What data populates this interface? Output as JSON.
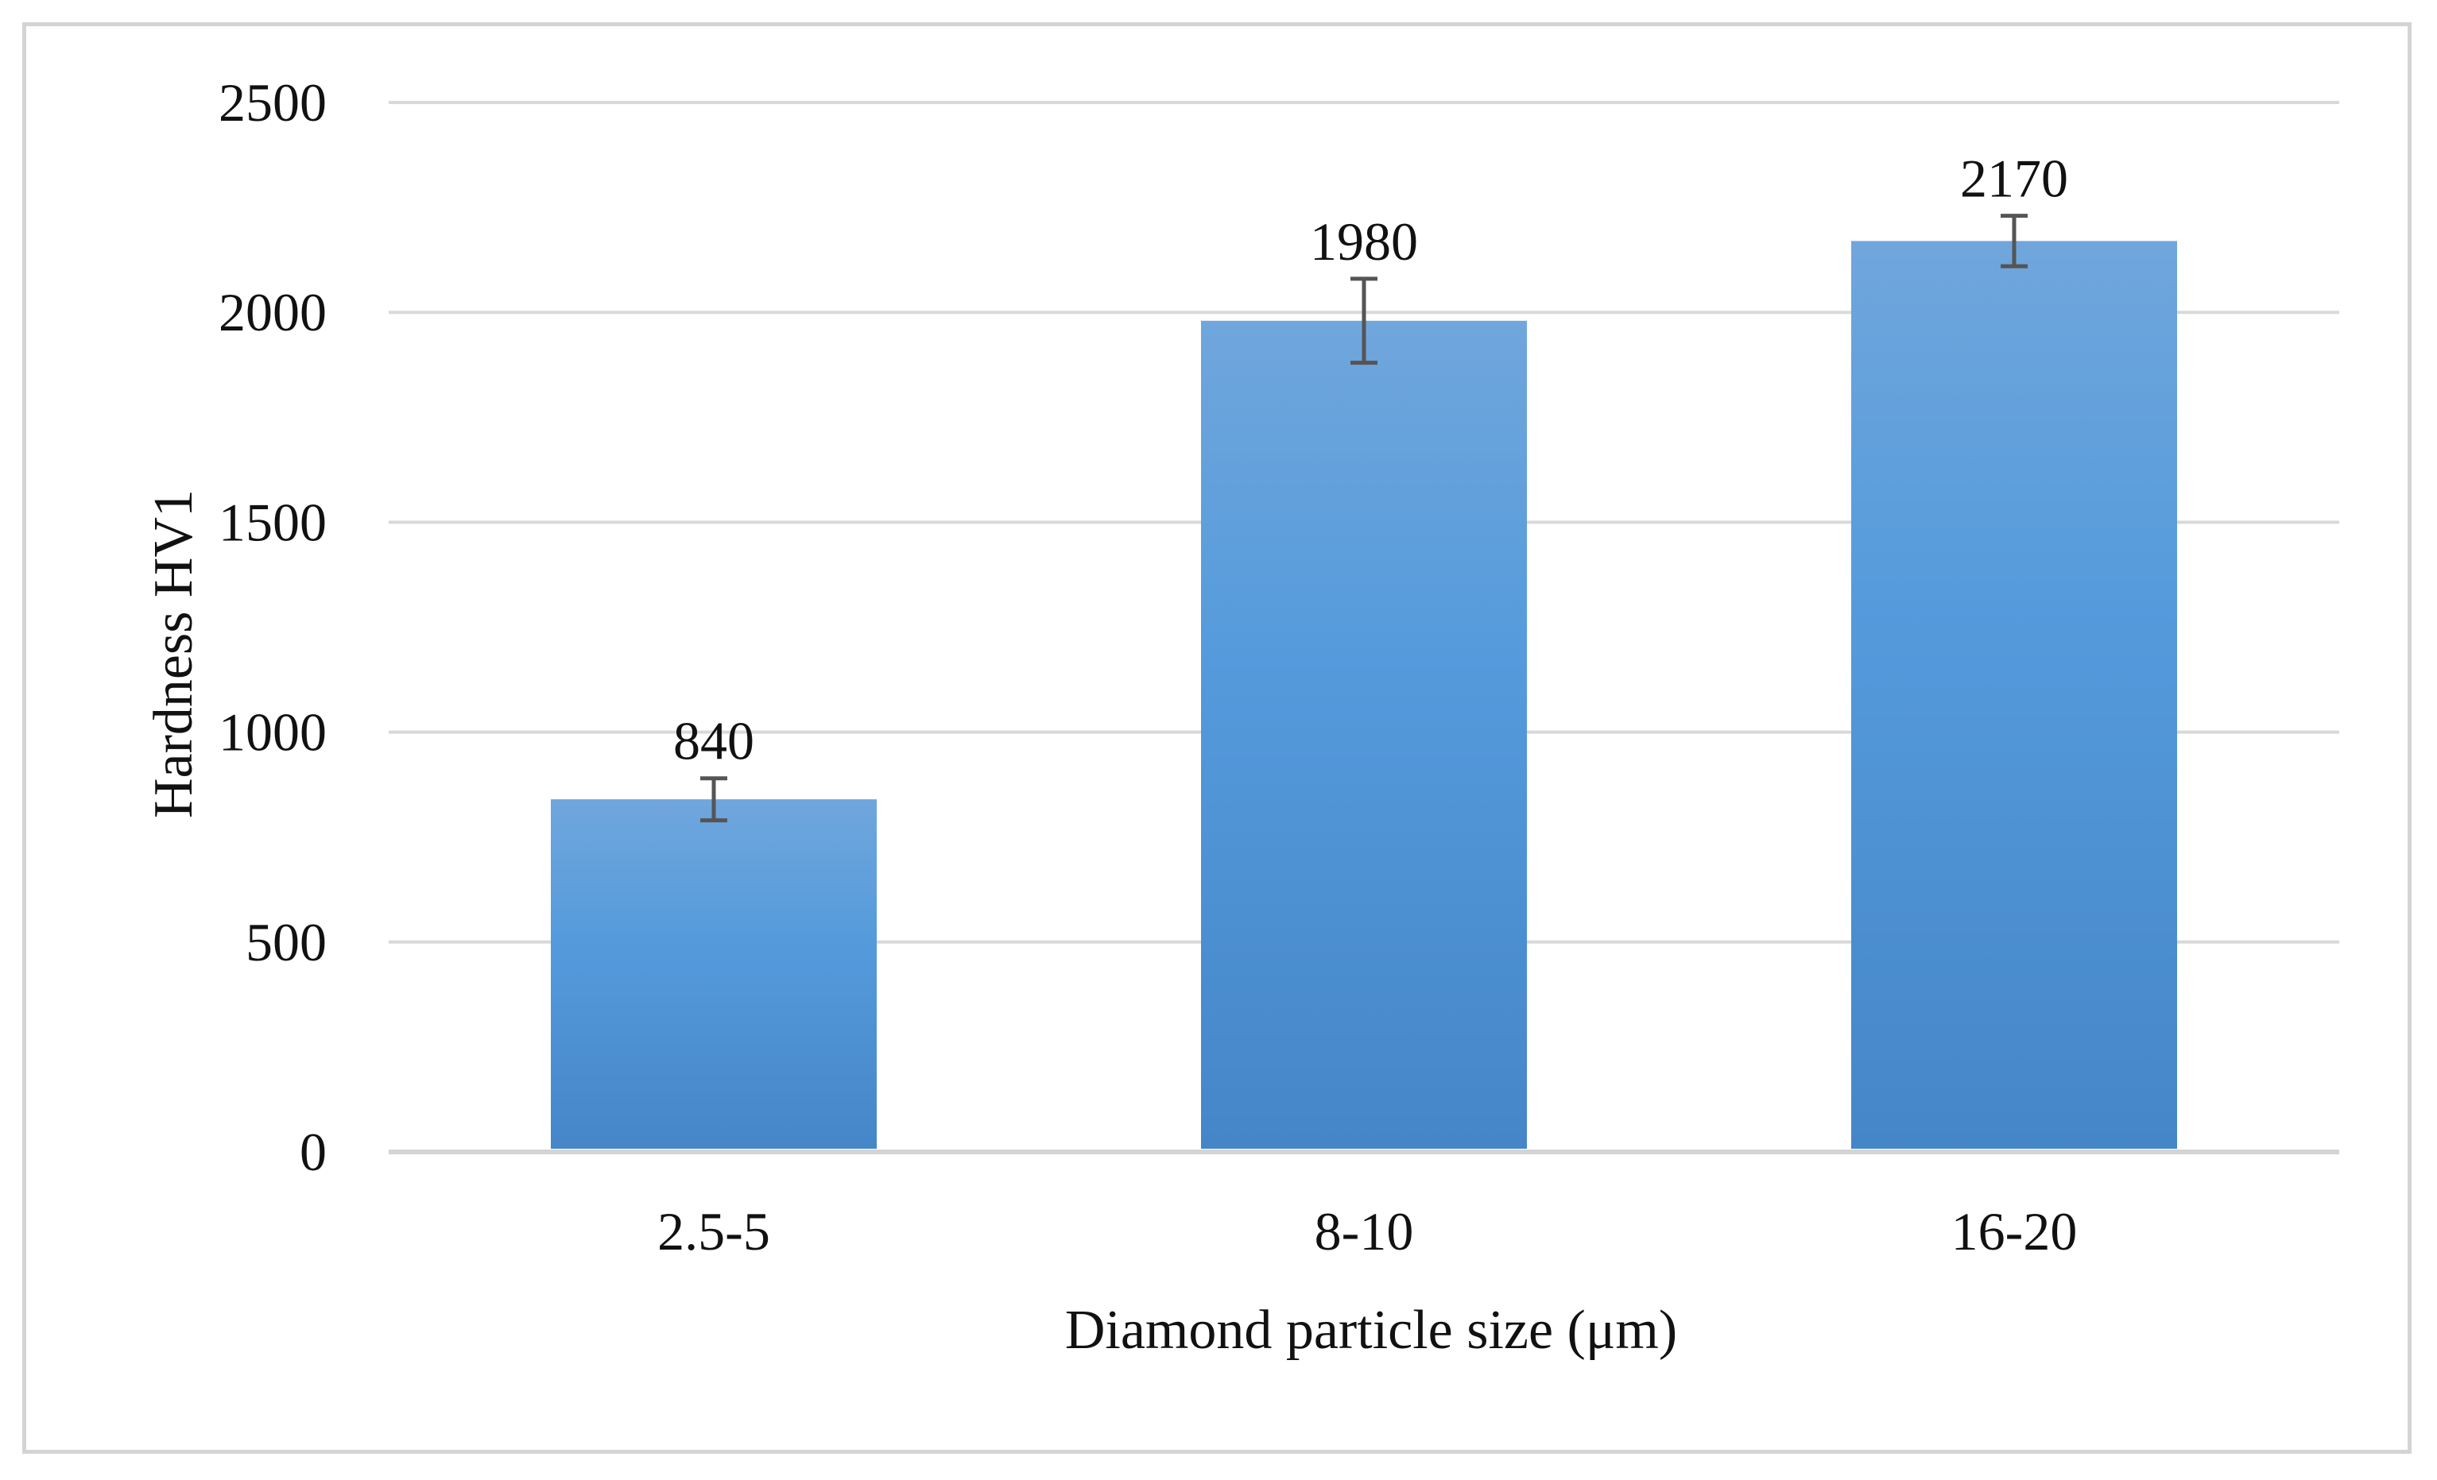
{
  "chart_data": {
    "type": "bar",
    "categories": [
      "2.5-5",
      "8-10",
      "16-20"
    ],
    "values": [
      840,
      1980,
      2170
    ],
    "error_bars": [
      50,
      100,
      60
    ],
    "data_labels": [
      "840",
      "1980",
      "2170"
    ],
    "xlabel": "Diamond particle size (μm)",
    "ylabel": "Hardness HV1",
    "ylim": [
      0,
      2500
    ],
    "yticks": [
      0,
      500,
      1000,
      1500,
      2000,
      2500
    ],
    "ytick_labels": [
      "0",
      "500",
      "1000",
      "1500",
      "2000",
      "2500"
    ],
    "grid": true,
    "legend": "none",
    "colors": {
      "bar_top": "#70a6dc",
      "bar_mid": "#559bdc",
      "bar_bottom": "#4586c8",
      "grid": "#d9d9d9",
      "axis": "#d4d4d4",
      "error_bar": "#555555"
    }
  }
}
